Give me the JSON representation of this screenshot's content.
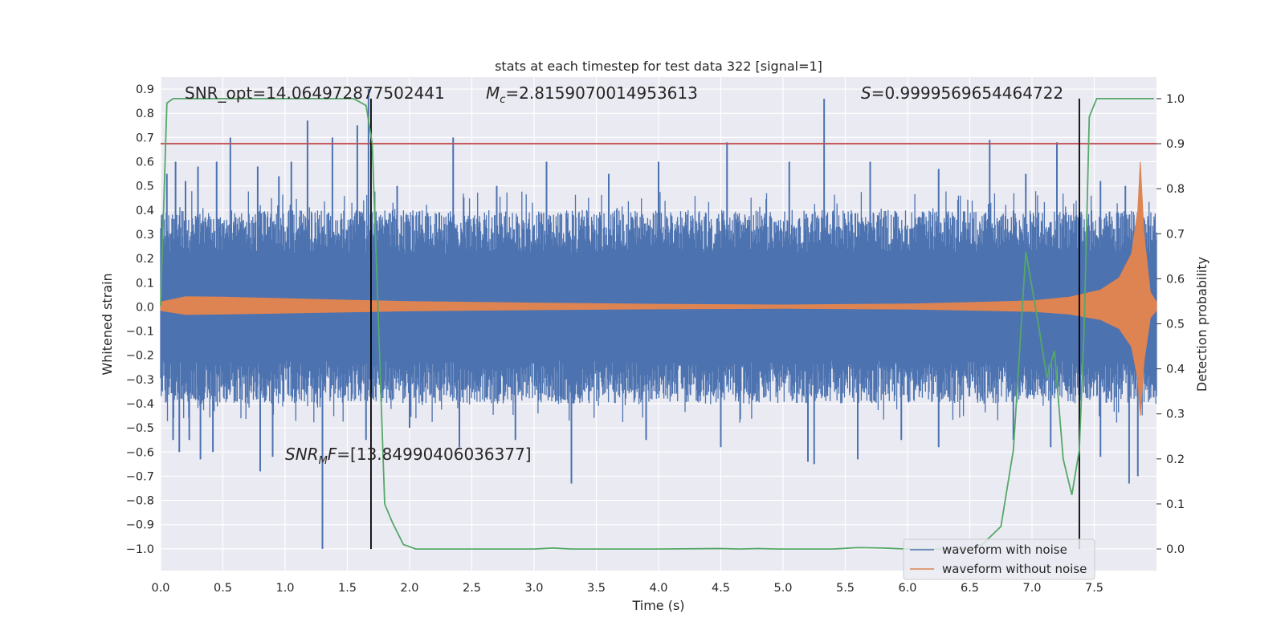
{
  "chart_data": {
    "type": "line",
    "title": "stats at each timestep for test data 322 [signal=1]",
    "xlabel": "Time (s)",
    "ylabel": "Whitened strain",
    "ylabel_right": "Detection probability",
    "xlim": [
      0.0,
      8.0
    ],
    "ylim": [
      -1.09,
      0.95
    ],
    "ylim_right": [
      -0.048,
      1.048
    ],
    "xticks": [
      "0.0",
      "0.5",
      "1.0",
      "1.5",
      "2.0",
      "2.5",
      "3.0",
      "3.5",
      "4.0",
      "4.5",
      "5.0",
      "5.5",
      "6.0",
      "6.5",
      "7.0",
      "7.5"
    ],
    "yticks": [
      "0.9",
      "0.8",
      "0.7",
      "0.6",
      "0.5",
      "0.4",
      "0.3",
      "0.2",
      "0.1",
      "0.0",
      "−0.1",
      "−0.2",
      "−0.3",
      "−0.4",
      "−0.5",
      "−0.6",
      "−0.7",
      "−0.8",
      "−0.9",
      "−1.0"
    ],
    "yticks_right": [
      "1.0",
      "0.9",
      "0.8",
      "0.7",
      "0.6",
      "0.5",
      "0.4",
      "0.3",
      "0.2",
      "0.1",
      "0.0"
    ],
    "grid": true,
    "legend_position": "lower-right",
    "annotations": {
      "snr_opt": "SNR_opt=14.064972877502441",
      "mc_symbol": "M",
      "mc_sub": "c",
      "mc_value": "=2.8159070014953613",
      "s_symbol": "S",
      "s_value": "=0.9999569654464722",
      "snrmf_symbol": "SNR",
      "snrmf_sub": "M",
      "snrmf_f": "F",
      "snrmf_value": "=[13.84990406036377]"
    },
    "threshold_probability": 0.9,
    "vertical_markers_time": [
      1.69,
      7.38
    ],
    "series": [
      {
        "name": "waveform with noise",
        "axis": "left",
        "color": "#4c72b0",
        "noise_envelope_typical": 0.4,
        "spikes": [
          [
            0.05,
            0.55
          ],
          [
            0.12,
            0.6
          ],
          [
            0.2,
            0.52
          ],
          [
            0.3,
            0.58
          ],
          [
            0.45,
            0.6
          ],
          [
            0.56,
            0.7
          ],
          [
            0.78,
            0.58
          ],
          [
            0.95,
            0.54
          ],
          [
            1.05,
            0.6
          ],
          [
            1.18,
            0.77
          ],
          [
            1.38,
            0.7
          ],
          [
            1.58,
            0.75
          ],
          [
            1.67,
            0.9
          ],
          [
            1.9,
            0.5
          ],
          [
            2.35,
            0.7
          ],
          [
            2.7,
            0.5
          ],
          [
            3.1,
            0.6
          ],
          [
            3.6,
            0.55
          ],
          [
            4.0,
            0.6
          ],
          [
            4.55,
            0.68
          ],
          [
            5.05,
            0.6
          ],
          [
            5.33,
            0.86
          ],
          [
            5.7,
            0.6
          ],
          [
            6.25,
            0.57
          ],
          [
            6.66,
            0.69
          ],
          [
            6.95,
            0.55
          ],
          [
            7.2,
            0.68
          ],
          [
            7.55,
            0.52
          ],
          [
            7.75,
            0.5
          ],
          [
            0.1,
            -0.55
          ],
          [
            0.15,
            -0.6
          ],
          [
            0.23,
            -0.55
          ],
          [
            0.32,
            -0.63
          ],
          [
            0.42,
            -0.6
          ],
          [
            0.8,
            -0.68
          ],
          [
            0.9,
            -0.62
          ],
          [
            1.3,
            -1.0
          ],
          [
            1.65,
            -0.55
          ],
          [
            2.0,
            -0.5
          ],
          [
            2.4,
            -0.58
          ],
          [
            2.85,
            -0.55
          ],
          [
            3.3,
            -0.73
          ],
          [
            3.9,
            -0.55
          ],
          [
            4.5,
            -0.58
          ],
          [
            5.2,
            -0.64
          ],
          [
            5.25,
            -0.65
          ],
          [
            5.6,
            -0.63
          ],
          [
            5.95,
            -0.55
          ],
          [
            6.25,
            -0.58
          ],
          [
            6.85,
            -0.55
          ],
          [
            7.15,
            -0.58
          ],
          [
            7.55,
            -0.62
          ],
          [
            7.78,
            -0.73
          ],
          [
            7.85,
            -0.7
          ]
        ]
      },
      {
        "name": "waveform without noise",
        "axis": "left",
        "color": "#dd8452",
        "envelope": [
          [
            0.0,
            0.02
          ],
          [
            0.2,
            0.042
          ],
          [
            0.5,
            0.04
          ],
          [
            1.0,
            0.034
          ],
          [
            1.5,
            0.028
          ],
          [
            2.0,
            0.022
          ],
          [
            3.0,
            0.016
          ],
          [
            4.0,
            0.011
          ],
          [
            5.0,
            0.008
          ],
          [
            6.0,
            0.012
          ],
          [
            6.5,
            0.018
          ],
          [
            7.0,
            0.025
          ],
          [
            7.3,
            0.04
          ],
          [
            7.55,
            0.07
          ],
          [
            7.7,
            0.12
          ],
          [
            7.8,
            0.22
          ],
          [
            7.85,
            0.4
          ],
          [
            7.87,
            0.6
          ],
          [
            7.9,
            0.3
          ],
          [
            7.95,
            0.06
          ],
          [
            8.0,
            0.02
          ]
        ]
      },
      {
        "name": "detection probability",
        "axis": "right",
        "color": "#55a868",
        "points": [
          [
            0.0,
            0.54
          ],
          [
            0.05,
            0.99
          ],
          [
            0.1,
            1.0
          ],
          [
            0.3,
            1.0
          ],
          [
            1.0,
            1.0
          ],
          [
            1.55,
            1.0
          ],
          [
            1.65,
            0.985
          ],
          [
            1.7,
            0.9
          ],
          [
            1.75,
            0.5
          ],
          [
            1.8,
            0.1
          ],
          [
            1.86,
            0.06
          ],
          [
            1.95,
            0.01
          ],
          [
            2.05,
            0.0
          ],
          [
            3.0,
            0.0
          ],
          [
            3.15,
            0.002
          ],
          [
            3.3,
            0.0
          ],
          [
            4.0,
            0.0
          ],
          [
            4.5,
            0.001
          ],
          [
            4.65,
            0.0
          ],
          [
            4.8,
            0.001
          ],
          [
            4.95,
            0.0
          ],
          [
            5.4,
            0.0
          ],
          [
            5.6,
            0.003
          ],
          [
            5.8,
            0.002
          ],
          [
            6.0,
            0.0
          ],
          [
            6.5,
            0.0
          ],
          [
            6.6,
            0.01
          ],
          [
            6.75,
            0.05
          ],
          [
            6.85,
            0.22
          ],
          [
            6.95,
            0.66
          ],
          [
            7.05,
            0.5
          ],
          [
            7.12,
            0.38
          ],
          [
            7.18,
            0.44
          ],
          [
            7.25,
            0.2
          ],
          [
            7.32,
            0.12
          ],
          [
            7.38,
            0.22
          ],
          [
            7.42,
            0.5
          ],
          [
            7.46,
            0.96
          ],
          [
            7.52,
            1.0
          ],
          [
            7.98,
            1.0
          ]
        ]
      }
    ]
  }
}
